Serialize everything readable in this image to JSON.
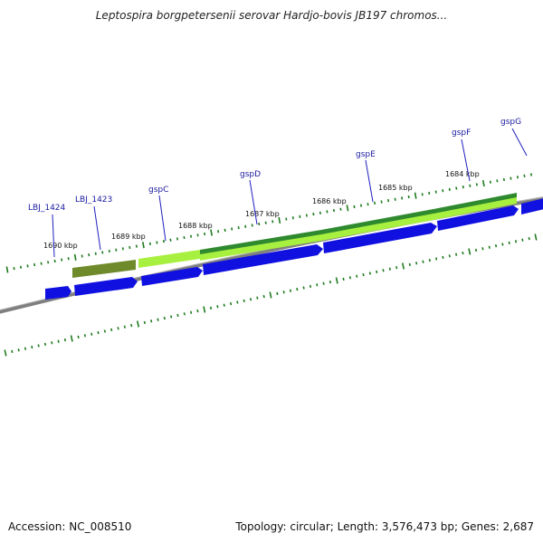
{
  "title": "Leptospira borgpetersenii serovar Hardjo-bovis JB197 chromos...",
  "footer": {
    "accession": "Accession: NC_008510",
    "summary": "Topology: circular; Length: 3,576,473 bp; Genes: 2,687"
  },
  "colors": {
    "backbone": "#808080",
    "tick": "#1e7a1e",
    "cds_blue": "#1010e0",
    "gene_light_green": "#a8f040",
    "gene_dark_green": "#2f8a2f",
    "gene_olive": "#6e8a2a",
    "label": "#1a1aa0"
  },
  "kbp_labels": [
    "1690 kbp",
    "1689 kbp",
    "1688 kbp",
    "1687 kbp",
    "1686 kbp",
    "1685 kbp",
    "1684 kbp"
  ],
  "gene_labels": [
    "LBJ_1424",
    "LBJ_1423",
    "gspC",
    "gspD",
    "gspE",
    "gspF",
    "gspG"
  ]
}
